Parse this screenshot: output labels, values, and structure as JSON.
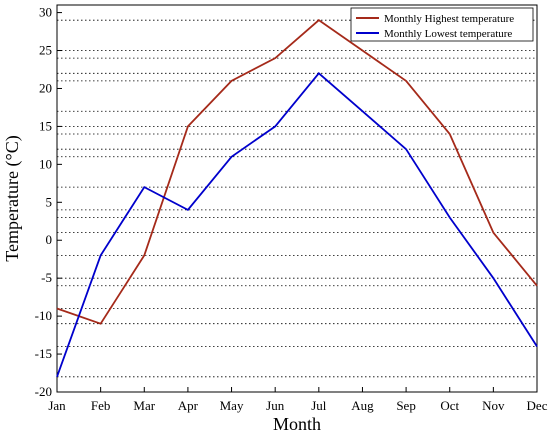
{
  "chart_data": {
    "type": "line",
    "title": "",
    "xlabel": "Month",
    "ylabel": "Temperature (°C)",
    "categories": [
      "Jan",
      "Feb",
      "Mar",
      "Apr",
      "May",
      "Jun",
      "Jul",
      "Aug",
      "Sep",
      "Oct",
      "Nov",
      "Dec"
    ],
    "ylim": [
      -20,
      31
    ],
    "yticks": [
      -20,
      -15,
      -10,
      -5,
      0,
      5,
      10,
      15,
      20,
      25,
      30
    ],
    "series": [
      {
        "name": "Monthly Highest temperature",
        "color": "#a52a1a",
        "values": [
          -9,
          -11,
          -2,
          15,
          21,
          24,
          29,
          25,
          21,
          14,
          1,
          -6
        ]
      },
      {
        "name": "Monthly Lowest temperature",
        "color": "#0000cc",
        "values": [
          -18,
          -2,
          7,
          4,
          11,
          15,
          22,
          17,
          12,
          3,
          -5,
          -14
        ]
      }
    ],
    "legend": "top-right",
    "grid": "dotted reference lines at each data value"
  }
}
